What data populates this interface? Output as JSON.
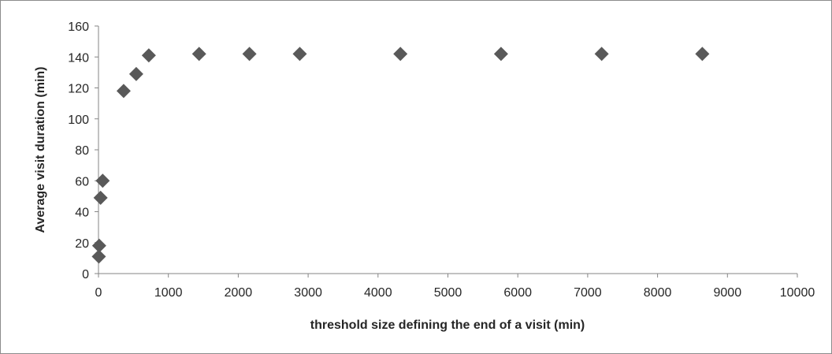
{
  "chart_data": {
    "type": "scatter",
    "title": "",
    "xlabel": "threshold size defining the end of a visit (min)",
    "ylabel": "Average visit duration (min)",
    "xlim": [
      0,
      10000
    ],
    "ylim": [
      0,
      160
    ],
    "x_ticks": [
      0,
      1000,
      2000,
      3000,
      4000,
      5000,
      6000,
      7000,
      8000,
      9000,
      10000
    ],
    "y_ticks": [
      0,
      20,
      40,
      60,
      80,
      100,
      120,
      140,
      160
    ],
    "grid": false,
    "legend": "none",
    "marker": "diamond",
    "marker_color": "#595959",
    "points": [
      {
        "x": 5,
        "y": 11
      },
      {
        "x": 10,
        "y": 18
      },
      {
        "x": 30,
        "y": 49
      },
      {
        "x": 60,
        "y": 60
      },
      {
        "x": 360,
        "y": 118
      },
      {
        "x": 540,
        "y": 129
      },
      {
        "x": 720,
        "y": 141
      },
      {
        "x": 1440,
        "y": 142
      },
      {
        "x": 2160,
        "y": 142
      },
      {
        "x": 2880,
        "y": 142
      },
      {
        "x": 4320,
        "y": 142
      },
      {
        "x": 5760,
        "y": 142
      },
      {
        "x": 7200,
        "y": 142
      },
      {
        "x": 8640,
        "y": 142
      }
    ]
  }
}
